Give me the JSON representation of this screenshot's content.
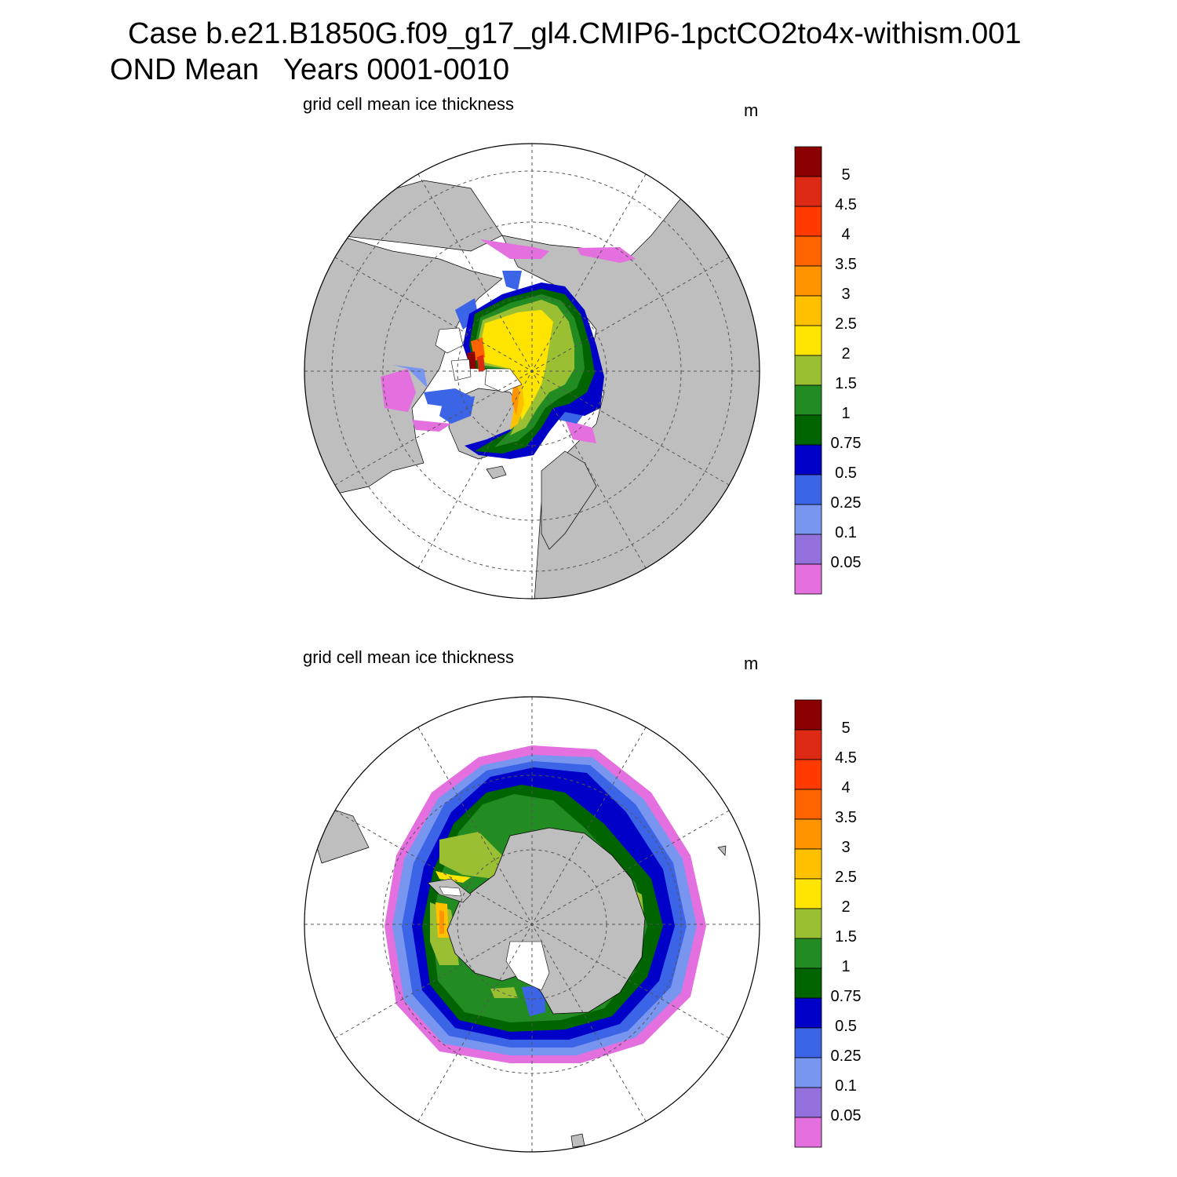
{
  "header": {
    "line1": "Case b.e21.B1850G.f09_g17_gl4.CMIP6-1pctCO2to4x-withism.001",
    "line2": "OND Mean   Years 0001-0010"
  },
  "panels": [
    {
      "id": "north",
      "title": "grid cell mean ice thickness",
      "units": "m",
      "hemisphere": "north"
    },
    {
      "id": "south",
      "title": "grid cell mean ice thickness",
      "units": "m",
      "hemisphere": "south"
    }
  ],
  "colorbar": {
    "labels": [
      "5",
      "4.5",
      "4",
      "3.5",
      "3",
      "2.5",
      "2",
      "1.5",
      "1",
      "0.75",
      "0.5",
      "0.25",
      "0.1",
      "0.05"
    ],
    "colors": [
      "#8b0000",
      "#dc2a14",
      "#ff3a00",
      "#ff6400",
      "#ff9400",
      "#ffc000",
      "#ffe400",
      "#9bbf32",
      "#228b22",
      "#006400",
      "#0000c8",
      "#3c64e6",
      "#7896f0",
      "#9370db",
      "#e46fde"
    ]
  },
  "colors": {
    "land": "#bebebe",
    "ocean": "#ffffff",
    "grid": "#555555"
  }
}
